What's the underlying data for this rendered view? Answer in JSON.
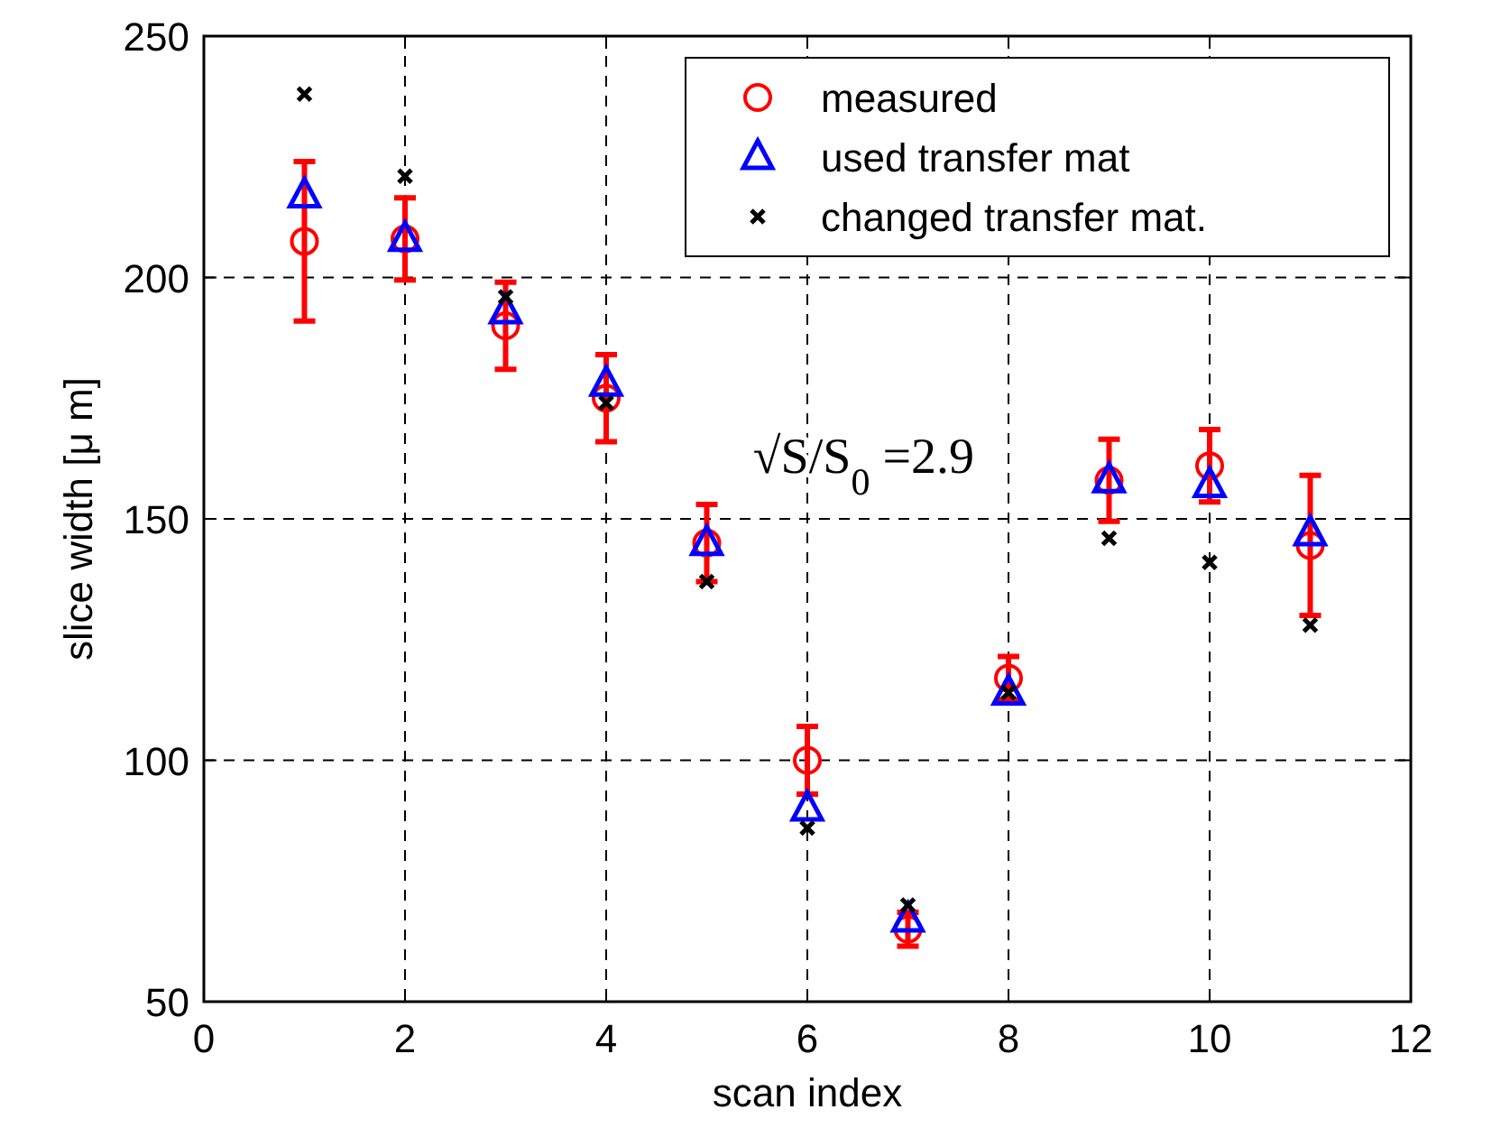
{
  "chart_data": {
    "type": "scatter",
    "xlabel": "scan index",
    "ylabel": "slice width [μ m]",
    "x": [
      1,
      2,
      3,
      4,
      5,
      6,
      7,
      8,
      9,
      10,
      11
    ],
    "xlim": [
      0,
      12
    ],
    "xticks": [
      0,
      2,
      4,
      6,
      8,
      10,
      12
    ],
    "ylim": [
      50,
      250
    ],
    "yticks": [
      50,
      100,
      150,
      200,
      250
    ],
    "grid": true,
    "legend": "top right",
    "annotations": [
      "√S/S$_{0}$ =2.9"
    ],
    "series": [
      {
        "name": "measured",
        "color": "#ff0000",
        "marker": "circle",
        "values": [
          207.5,
          208,
          190,
          175,
          145,
          100,
          65,
          117,
          158,
          161,
          144.5
        ],
        "errors": [
          16.5,
          8.5,
          9,
          9,
          8,
          7,
          3.5,
          4.5,
          8.5,
          7.5,
          14.5
        ]
      },
      {
        "name": "used transfer mat",
        "color": "#0000ff",
        "marker": "triangle",
        "values": [
          217,
          208,
          193,
          178,
          145,
          90,
          67,
          114,
          158,
          157,
          147
        ]
      },
      {
        "name": "changed transfer mat.",
        "color": "#000000",
        "marker": "cross",
        "values": [
          238,
          221,
          196,
          174,
          137,
          86,
          70,
          114,
          146,
          141,
          128
        ]
      }
    ]
  }
}
